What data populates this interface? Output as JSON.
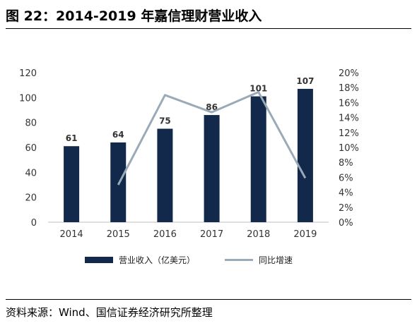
{
  "figure": {
    "title": "图 22：2014-2019 年嘉信理财营业收入",
    "source": "资料来源：Wind、国信证券经济研究所整理"
  },
  "chart_data": {
    "type": "bar",
    "categories": [
      "2014",
      "2015",
      "2016",
      "2017",
      "2018",
      "2019"
    ],
    "series": [
      {
        "name": "营业收入（亿美元）",
        "type": "bar",
        "axis": "left",
        "color": "#13294B",
        "values": [
          61,
          64,
          75,
          86,
          101,
          107
        ],
        "data_labels": [
          "61",
          "64",
          "75",
          "86",
          "101",
          "107"
        ]
      },
      {
        "name": "同比增速",
        "type": "line",
        "axis": "right",
        "color": "#9AAAB8",
        "values": [
          null,
          0.05,
          0.17,
          0.147,
          0.174,
          0.059
        ]
      }
    ],
    "ylim": [
      0,
      120
    ],
    "y_ticks": [
      "0",
      "20",
      "40",
      "60",
      "80",
      "100",
      "120"
    ],
    "y2lim": [
      0,
      0.2
    ],
    "y2_ticks": [
      "0%",
      "2%",
      "4%",
      "6%",
      "8%",
      "10%",
      "12%",
      "14%",
      "16%",
      "18%",
      "20%"
    ],
    "grid": false,
    "legend_position": "bottom"
  }
}
